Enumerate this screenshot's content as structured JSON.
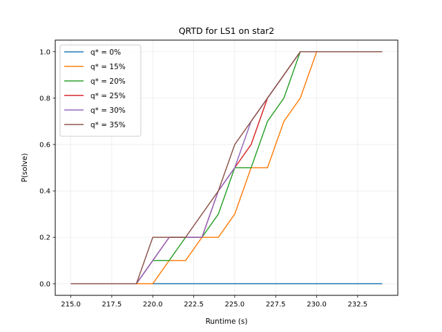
{
  "chart_data": {
    "type": "line",
    "title": "QRTD for LS1 on star2",
    "xlabel": "Runtime (s)",
    "ylabel": "P(solve)",
    "xlim": [
      214.05,
      234.95
    ],
    "ylim": [
      -0.05,
      1.05
    ],
    "xticks": [
      215.0,
      217.5,
      220.0,
      222.5,
      225.0,
      227.5,
      230.0,
      232.5
    ],
    "xtick_labels": [
      "215.0",
      "217.5",
      "220.0",
      "222.5",
      "225.0",
      "227.5",
      "230.0",
      "232.5"
    ],
    "yticks": [
      0.0,
      0.2,
      0.4,
      0.6,
      0.8,
      1.0
    ],
    "ytick_labels": [
      "0.0",
      "0.2",
      "0.4",
      "0.6",
      "0.8",
      "1.0"
    ],
    "grid": true,
    "legend_position": "top-left",
    "x": [
      215,
      216,
      217,
      218,
      219,
      220,
      221,
      222,
      223,
      224,
      225,
      226,
      227,
      228,
      229,
      230,
      231,
      232,
      233,
      234
    ],
    "series": [
      {
        "name": "q* = 0%",
        "color": "#1f77b4",
        "values": [
          0,
          0,
          0,
          0,
          0,
          0,
          0,
          0,
          0,
          0,
          0,
          0,
          0,
          0,
          0,
          0,
          0,
          0,
          0,
          0
        ]
      },
      {
        "name": "q* = 15%",
        "color": "#ff7f0e",
        "values": [
          0,
          0,
          0,
          0,
          0,
          0,
          0.1,
          0.1,
          0.2,
          0.2,
          0.3,
          0.5,
          0.5,
          0.7,
          0.8,
          1,
          1,
          1,
          1,
          1
        ]
      },
      {
        "name": "q* = 20%",
        "color": "#2ca02c",
        "values": [
          0,
          0,
          0,
          0,
          0,
          0.1,
          0.1,
          0.2,
          0.2,
          0.3,
          0.5,
          0.5,
          0.7,
          0.8,
          1,
          1,
          1,
          1,
          1,
          1
        ]
      },
      {
        "name": "q* = 25%",
        "color": "#d62728",
        "values": [
          0,
          0,
          0,
          0,
          0,
          0.1,
          0.2,
          0.2,
          0.2,
          0.4,
          0.5,
          0.6,
          0.8,
          0.9,
          1,
          1,
          1,
          1,
          1,
          1
        ]
      },
      {
        "name": "q* = 30%",
        "color": "#9467bd",
        "values": [
          0,
          0,
          0,
          0,
          0,
          0.1,
          0.2,
          0.2,
          0.2,
          0.4,
          0.5,
          0.7,
          0.8,
          0.9,
          1,
          1,
          1,
          1,
          1,
          1
        ]
      },
      {
        "name": "q* = 35%",
        "color": "#8c564b",
        "values": [
          0,
          0,
          0,
          0,
          0,
          0.2,
          0.2,
          0.2,
          0.3,
          0.4,
          0.6,
          0.7,
          0.8,
          0.9,
          1,
          1,
          1,
          1,
          1,
          1
        ]
      }
    ]
  }
}
